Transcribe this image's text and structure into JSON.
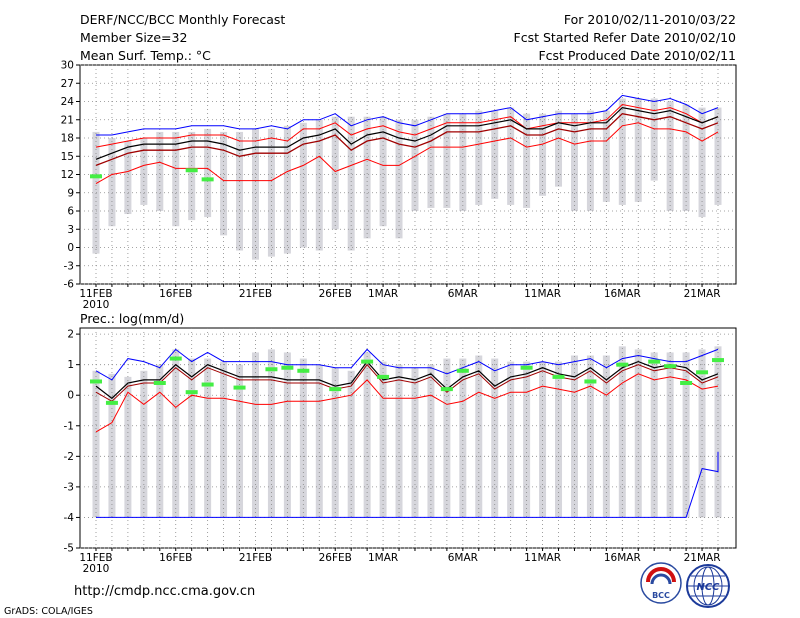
{
  "header": {
    "left": [
      "DERF/NCC/BCC Monthly Forecast",
      "Member Size=32",
      "Mean Surf. Temp.: °C"
    ],
    "right": [
      "For 2010/02/11-2010/03/22",
      "Fcst Started Refer Date 2010/02/10",
      "Fcst Produced Date 2010/02/11"
    ]
  },
  "footer": {
    "url": "http://cmdp.ncc.cma.gov.cn",
    "credit": "GrADS: COLA/IGES",
    "logo_left_text": "BCC",
    "logo_right_text": "NCC"
  },
  "colors": {
    "bar": "#d6d6dc",
    "max_line": "#0000ff",
    "min_line": "#ff0000",
    "mean_line": "#000000",
    "upper_mid": "#ff0000",
    "lower_mid": "#a00000",
    "obs_marker": "#44ee44",
    "grid": "#888888"
  },
  "chart_data": [
    {
      "type": "line",
      "title": "Mean Surf. Temp.: °C",
      "y_ticks": [
        -6,
        -3,
        0,
        3,
        6,
        9,
        12,
        15,
        18,
        21,
        24,
        27,
        30
      ],
      "ylim": [
        -6,
        30
      ],
      "x_tick_labels": [
        {
          "day": 1,
          "label": "11FEB",
          "sub": "2010"
        },
        {
          "day": 6,
          "label": "16FEB"
        },
        {
          "day": 11,
          "label": "21FEB"
        },
        {
          "day": 16,
          "label": "26FEB"
        },
        {
          "day": 19,
          "label": "1MAR"
        },
        {
          "day": 24,
          "label": "6MAR"
        },
        {
          "day": 29,
          "label": "11MAR"
        },
        {
          "day": 34,
          "label": "16MAR"
        },
        {
          "day": 39,
          "label": "21MAR"
        }
      ],
      "days": 40,
      "series": [
        {
          "name": "max",
          "values": [
            18.5,
            18.5,
            19,
            19.5,
            19.5,
            19.5,
            20,
            20,
            20,
            19.5,
            19.5,
            20,
            19.5,
            21,
            21,
            22,
            20,
            21,
            21.5,
            20.5,
            20,
            21,
            22,
            22,
            22,
            22.5,
            23,
            21,
            21.5,
            22,
            22,
            22,
            22.5,
            25,
            24.5,
            24,
            24.5,
            23.5,
            22,
            23
          ]
        },
        {
          "name": "upper",
          "values": [
            16.5,
            17,
            17.5,
            18,
            18,
            18,
            18.5,
            18.5,
            18.5,
            17.5,
            17.5,
            18,
            17.5,
            19.5,
            19.5,
            20.5,
            18.5,
            19.5,
            20,
            19,
            18.5,
            19.5,
            20.5,
            20.5,
            20.5,
            21,
            21.5,
            19.5,
            20,
            20.5,
            20.5,
            20.5,
            21,
            23.5,
            23,
            22.5,
            23,
            22,
            20.5,
            21.5
          ]
        },
        {
          "name": "mean",
          "values": [
            14.5,
            15.5,
            16.5,
            17,
            17,
            17,
            17.5,
            17.5,
            17,
            16,
            16.5,
            16.5,
            16.5,
            18,
            18.5,
            19.5,
            17,
            18.5,
            19,
            18,
            17.5,
            18.5,
            20,
            20,
            20,
            20.5,
            21,
            19.5,
            19.5,
            20.5,
            20,
            20.5,
            20.5,
            23,
            22.5,
            22,
            22.5,
            21.5,
            20.5,
            21.5
          ]
        },
        {
          "name": "lower",
          "values": [
            13.5,
            14.5,
            15.5,
            16,
            16,
            16,
            16.5,
            16.5,
            16,
            15,
            15.5,
            15.5,
            15.5,
            17,
            17.5,
            18.5,
            16,
            17.5,
            18,
            17,
            16.5,
            17.5,
            19,
            19,
            19,
            19.5,
            20,
            18.5,
            18.5,
            19.5,
            19,
            19.5,
            19.5,
            22,
            21.5,
            21,
            21.5,
            20.5,
            19.5,
            20.5
          ]
        },
        {
          "name": "min",
          "values": [
            10.5,
            12,
            12.5,
            13.5,
            14,
            13,
            13,
            13,
            11,
            11,
            11,
            11,
            12.5,
            13.5,
            15,
            12.5,
            13.5,
            14.5,
            13.5,
            13.5,
            15,
            16.5,
            16.5,
            16.5,
            17,
            17.5,
            18,
            16.5,
            17,
            18,
            17,
            17.5,
            17.5,
            20,
            20.5,
            19.5,
            19.5,
            19,
            17.5,
            19
          ]
        }
      ],
      "bars": [
        [
          -1,
          19
        ],
        [
          3.5,
          18
        ],
        [
          5.5,
          17.5
        ],
        [
          7,
          18
        ],
        [
          6,
          19
        ],
        [
          3.5,
          19
        ],
        [
          4.5,
          19
        ],
        [
          5,
          19.5
        ],
        [
          2,
          19
        ],
        [
          -0.5,
          19
        ],
        [
          -2,
          19.5
        ],
        [
          -1.5,
          19.5
        ],
        [
          -1,
          20
        ],
        [
          0,
          20.5
        ],
        [
          -0.5,
          21
        ],
        [
          3,
          21.5
        ],
        [
          -0.5,
          21.5
        ],
        [
          1.5,
          21.5
        ],
        [
          3.5,
          21.5
        ],
        [
          1.5,
          21
        ],
        [
          6,
          21
        ],
        [
          6.5,
          21.5
        ],
        [
          6.5,
          22
        ],
        [
          6,
          22
        ],
        [
          7,
          22.5
        ],
        [
          8,
          22.5
        ],
        [
          7,
          23
        ],
        [
          6.5,
          22
        ],
        [
          8.5,
          22
        ],
        [
          10,
          22.5
        ],
        [
          6,
          22
        ],
        [
          6,
          22.5
        ],
        [
          7.5,
          22.5
        ],
        [
          7,
          24.5
        ],
        [
          7.5,
          24.5
        ],
        [
          11,
          24.5
        ],
        [
          6,
          24
        ],
        [
          6,
          23.5
        ],
        [
          5,
          23
        ],
        [
          7,
          23
        ]
      ],
      "obs": [
        {
          "day": 1,
          "value": 11.7
        },
        {
          "day": 7,
          "value": 12.7
        },
        {
          "day": 8,
          "value": 11.2
        }
      ]
    },
    {
      "type": "line",
      "title": "Prec.: log(mm/d)",
      "y_ticks": [
        -5,
        -4,
        -3,
        -2,
        -1,
        0,
        1,
        2
      ],
      "ylim": [
        -5,
        2.2
      ],
      "x_tick_labels": [
        {
          "day": 1,
          "label": "11FEB",
          "sub": "2010"
        },
        {
          "day": 6,
          "label": "16FEB"
        },
        {
          "day": 11,
          "label": "21FEB"
        },
        {
          "day": 16,
          "label": "26FEB"
        },
        {
          "day": 19,
          "label": "1MAR"
        },
        {
          "day": 24,
          "label": "6MAR"
        },
        {
          "day": 29,
          "label": "11MAR"
        },
        {
          "day": 34,
          "label": "16MAR"
        },
        {
          "day": 39,
          "label": "21MAR"
        }
      ],
      "days": 40,
      "series": [
        {
          "name": "max",
          "values": [
            0.8,
            0.5,
            1.2,
            1.1,
            0.9,
            1.5,
            1.1,
            1.4,
            1.1,
            1.1,
            1.1,
            1.1,
            1,
            1,
            1,
            0.9,
            0.9,
            1.5,
            1,
            0.9,
            0.9,
            0.9,
            0.7,
            0.9,
            1.1,
            0.8,
            1,
            1,
            1.1,
            1,
            1.1,
            1.2,
            0.9,
            1.2,
            1.3,
            1.2,
            1.1,
            1.1,
            1.3,
            1.5
          ]
        },
        {
          "name": "mean",
          "values": [
            0.3,
            -0.1,
            0.4,
            0.5,
            0.5,
            1,
            0.6,
            1,
            0.8,
            0.6,
            0.6,
            0.6,
            0.5,
            0.5,
            0.5,
            0.3,
            0.4,
            1.1,
            0.5,
            0.6,
            0.5,
            0.7,
            0.2,
            0.6,
            0.8,
            0.3,
            0.6,
            0.7,
            0.9,
            0.7,
            0.6,
            0.9,
            0.5,
            0.9,
            1.1,
            0.9,
            1,
            0.9,
            0.5,
            0.7
          ]
        },
        {
          "name": "lower_mid",
          "values": [
            0.1,
            -0.2,
            0.3,
            0.4,
            0.4,
            0.9,
            0.5,
            0.9,
            0.7,
            0.5,
            0.5,
            0.5,
            0.4,
            0.4,
            0.4,
            0.2,
            0.3,
            1,
            0.4,
            0.5,
            0.4,
            0.6,
            0.1,
            0.5,
            0.7,
            0.2,
            0.5,
            0.6,
            0.8,
            0.6,
            0.5,
            0.8,
            0.4,
            0.8,
            1,
            0.8,
            0.9,
            0.8,
            0.4,
            0.6
          ]
        },
        {
          "name": "min",
          "values": [
            -1.2,
            -0.9,
            0.1,
            -0.3,
            0.1,
            -0.4,
            0,
            -0.1,
            -0.1,
            -0.2,
            -0.3,
            -0.3,
            -0.2,
            -0.2,
            -0.2,
            -0.1,
            0,
            0.5,
            -0.1,
            -0.1,
            -0.1,
            0,
            -0.3,
            -0.2,
            0.1,
            -0.1,
            0.1,
            0.1,
            0.3,
            0.2,
            0.1,
            0.3,
            0,
            0.4,
            0.7,
            0.5,
            0.6,
            0.5,
            0.2,
            0.3
          ]
        },
        {
          "name": "floor",
          "values": [
            -4,
            -4,
            -4,
            -4,
            -4,
            -4,
            -4,
            -4,
            -4,
            -4,
            -4,
            -4,
            -4,
            -4,
            -4,
            -4,
            -4,
            -4,
            -4,
            -4,
            -4,
            -4,
            -4,
            -4,
            -4,
            -4,
            -4,
            -4,
            -4,
            -4,
            -4,
            -4,
            -4,
            -4,
            -4,
            -4,
            -4,
            -4,
            -2.4,
            -2.5
          ]
        }
      ],
      "bars": [
        [
          -4,
          0.8
        ],
        [
          -4,
          0.7
        ],
        [
          -4,
          0.6
        ],
        [
          -4,
          0.8
        ],
        [
          -4,
          1
        ],
        [
          -4,
          1.5
        ],
        [
          -4,
          1.2
        ],
        [
          -4,
          1.2
        ],
        [
          -4,
          1.1
        ],
        [
          -4,
          1
        ],
        [
          -4,
          1.4
        ],
        [
          -4,
          1.5
        ],
        [
          -4,
          1.4
        ],
        [
          -4,
          1.2
        ],
        [
          -4,
          1
        ],
        [
          -4,
          0.9
        ],
        [
          -4,
          0.8
        ],
        [
          -4,
          1.4
        ],
        [
          -4,
          1.1
        ],
        [
          -4,
          1
        ],
        [
          -4,
          0.9
        ],
        [
          -4,
          1
        ],
        [
          -4,
          1.2
        ],
        [
          -4,
          1.2
        ],
        [
          -4,
          1.3
        ],
        [
          -4,
          1.2
        ],
        [
          -4,
          1.1
        ],
        [
          -4,
          1.1
        ],
        [
          -4,
          1.1
        ],
        [
          -4,
          1.1
        ],
        [
          -4,
          1.3
        ],
        [
          -4,
          1.3
        ],
        [
          -4,
          1.3
        ],
        [
          -4,
          1.6
        ],
        [
          -4,
          1.5
        ],
        [
          -4,
          1.4
        ],
        [
          -4,
          1.4
        ],
        [
          -4,
          1.4
        ],
        [
          -4,
          1.5
        ],
        [
          -4,
          1.6
        ]
      ],
      "obs": [
        {
          "day": 1,
          "value": 0.45
        },
        {
          "day": 2,
          "value": -0.25
        },
        {
          "day": 5,
          "value": 0.4
        },
        {
          "day": 6,
          "value": 1.2
        },
        {
          "day": 7,
          "value": 0.1
        },
        {
          "day": 8,
          "value": 0.35
        },
        {
          "day": 10,
          "value": 0.25
        },
        {
          "day": 12,
          "value": 0.85
        },
        {
          "day": 13,
          "value": 0.9
        },
        {
          "day": 14,
          "value": 0.8
        },
        {
          "day": 16,
          "value": 0.2
        },
        {
          "day": 18,
          "value": 1.1
        },
        {
          "day": 19,
          "value": 0.6
        },
        {
          "day": 23,
          "value": 0.2
        },
        {
          "day": 24,
          "value": 0.8
        },
        {
          "day": 28,
          "value": 0.9
        },
        {
          "day": 30,
          "value": 0.6
        },
        {
          "day": 32,
          "value": 0.45
        },
        {
          "day": 34,
          "value": 1
        },
        {
          "day": 36,
          "value": 1.1
        },
        {
          "day": 37,
          "value": 0.95
        },
        {
          "day": 38,
          "value": 0.4
        },
        {
          "day": 39,
          "value": 0.75
        },
        {
          "day": 40,
          "value": 1.15
        }
      ]
    }
  ]
}
